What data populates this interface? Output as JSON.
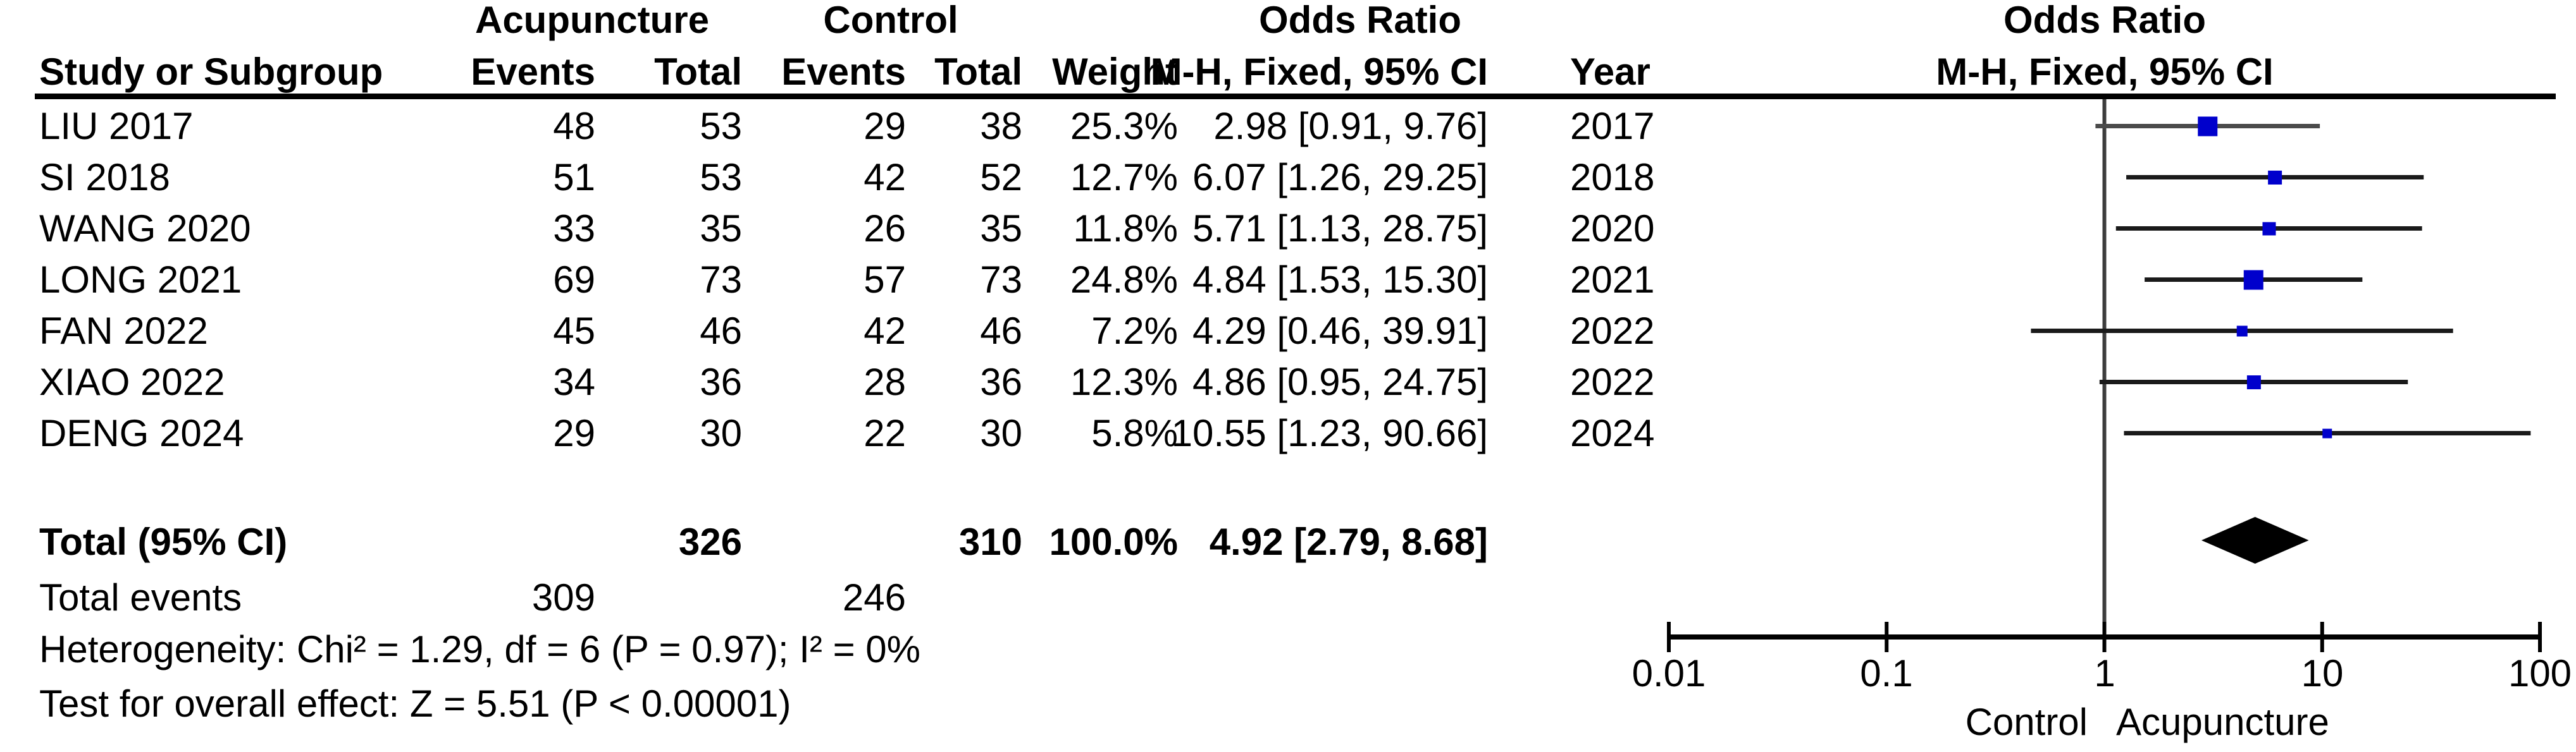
{
  "table": {
    "group_headers": {
      "acupuncture": "Acupuncture",
      "control": "Control",
      "odds_ratio": "Odds Ratio"
    },
    "columns": {
      "study": "Study or Subgroup",
      "events1": "Events",
      "total1": "Total",
      "events2": "Events",
      "total2": "Total",
      "weight": "Weight",
      "mh_ci": "M-H, Fixed, 95% CI",
      "year": "Year"
    },
    "rows": [
      {
        "study": "LIU 2017",
        "e1": "48",
        "t1": "53",
        "e2": "29",
        "t2": "38",
        "weight": "25.3%",
        "ci": "2.98 [0.91, 9.76]",
        "year": "2017"
      },
      {
        "study": "SI 2018",
        "e1": "51",
        "t1": "53",
        "e2": "42",
        "t2": "52",
        "weight": "12.7%",
        "ci": "6.07 [1.26, 29.25]",
        "year": "2018"
      },
      {
        "study": "WANG 2020",
        "e1": "33",
        "t1": "35",
        "e2": "26",
        "t2": "35",
        "weight": "11.8%",
        "ci": "5.71 [1.13, 28.75]",
        "year": "2020"
      },
      {
        "study": "LONG 2021",
        "e1": "69",
        "t1": "73",
        "e2": "57",
        "t2": "73",
        "weight": "24.8%",
        "ci": "4.84 [1.53, 15.30]",
        "year": "2021"
      },
      {
        "study": "FAN 2022",
        "e1": "45",
        "t1": "46",
        "e2": "42",
        "t2": "46",
        "weight": "7.2%",
        "ci": "4.29 [0.46, 39.91]",
        "year": "2022"
      },
      {
        "study": "XIAO 2022",
        "e1": "34",
        "t1": "36",
        "e2": "28",
        "t2": "36",
        "weight": "12.3%",
        "ci": "4.86 [0.95, 24.75]",
        "year": "2022"
      },
      {
        "study": "DENG 2024",
        "e1": "29",
        "t1": "30",
        "e2": "22",
        "t2": "30",
        "weight": "5.8%",
        "ci": "10.55 [1.23, 90.66]",
        "year": "2024"
      }
    ],
    "total_row": {
      "label": "Total (95% CI)",
      "t1": "326",
      "t2": "310",
      "weight": "100.0%",
      "ci": "4.92 [2.79, 8.68]"
    },
    "total_events": {
      "label": "Total events",
      "e1": "309",
      "e2": "246"
    },
    "heterogeneity": "Heterogeneity: Chi² = 1.29, df = 6 (P = 0.97); I² = 0%",
    "overall_effect": "Test for overall effect: Z = 5.51 (P < 0.00001)"
  },
  "plot": {
    "header_line1": "Odds Ratio",
    "header_line2": "M-H, Fixed, 95% CI",
    "axis_ticks": [
      "0.01",
      "0.1",
      "1",
      "10",
      "100"
    ],
    "left_label": "Control",
    "right_label": "Acupuncture",
    "marker_color": "#0000CC",
    "diamond_color": "#000000",
    "line_color": "#1a1a1a",
    "first_line_color": "#4b4b4b",
    "centerline_color": "#3d3d3d"
  },
  "chart_data": {
    "type": "forest",
    "x_scale": "log10",
    "x_range": [
      0.01,
      100
    ],
    "ticks": [
      0.01,
      0.1,
      1,
      10,
      100
    ],
    "effect_measure": "Odds Ratio (M-H, Fixed, 95% CI)",
    "studies": [
      {
        "name": "LIU 2017",
        "events_acu": 48,
        "total_acu": 53,
        "events_ctrl": 29,
        "total_ctrl": 38,
        "weight_pct": 25.3,
        "or": 2.98,
        "ci_low": 0.91,
        "ci_high": 9.76,
        "year": 2017
      },
      {
        "name": "SI 2018",
        "events_acu": 51,
        "total_acu": 53,
        "events_ctrl": 42,
        "total_ctrl": 52,
        "weight_pct": 12.7,
        "or": 6.07,
        "ci_low": 1.26,
        "ci_high": 29.25,
        "year": 2018
      },
      {
        "name": "WANG 2020",
        "events_acu": 33,
        "total_acu": 35,
        "events_ctrl": 26,
        "total_ctrl": 35,
        "weight_pct": 11.8,
        "or": 5.71,
        "ci_low": 1.13,
        "ci_high": 28.75,
        "year": 2020
      },
      {
        "name": "LONG 2021",
        "events_acu": 69,
        "total_acu": 73,
        "events_ctrl": 57,
        "total_ctrl": 73,
        "weight_pct": 24.8,
        "or": 4.84,
        "ci_low": 1.53,
        "ci_high": 15.3,
        "year": 2021
      },
      {
        "name": "FAN 2022",
        "events_acu": 45,
        "total_acu": 46,
        "events_ctrl": 42,
        "total_ctrl": 46,
        "weight_pct": 7.2,
        "or": 4.29,
        "ci_low": 0.46,
        "ci_high": 39.91,
        "year": 2022
      },
      {
        "name": "XIAO 2022",
        "events_acu": 34,
        "total_acu": 36,
        "events_ctrl": 28,
        "total_ctrl": 36,
        "weight_pct": 12.3,
        "or": 4.86,
        "ci_low": 0.95,
        "ci_high": 24.75,
        "year": 2022
      },
      {
        "name": "DENG 2024",
        "events_acu": 29,
        "total_acu": 30,
        "events_ctrl": 22,
        "total_ctrl": 30,
        "weight_pct": 5.8,
        "or": 10.55,
        "ci_low": 1.23,
        "ci_high": 90.66,
        "year": 2024
      }
    ],
    "total": {
      "or": 4.92,
      "ci_low": 2.79,
      "ci_high": 8.68,
      "total_acu": 326,
      "total_ctrl": 310,
      "events_acu": 309,
      "events_ctrl": 246,
      "weight_pct": 100.0
    },
    "heterogeneity": {
      "chi2": 1.29,
      "df": 6,
      "p": 0.97,
      "i2_pct": 0
    },
    "overall_effect": {
      "z": 5.51,
      "p": "< 0.00001"
    }
  }
}
